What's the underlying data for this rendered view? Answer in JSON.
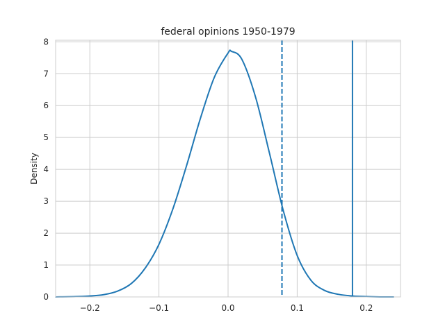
{
  "chart_data": {
    "type": "line",
    "title": "federal opinions 1950-1979",
    "xlabel": "",
    "ylabel": "Density",
    "xlim": [
      -0.2495,
      0.2495
    ],
    "ylim": [
      0,
      8.05
    ],
    "grid": true,
    "xticks": [
      -0.2,
      -0.1,
      0.0,
      0.1,
      0.2
    ],
    "xtick_labels": [
      "−0.2",
      "−0.1",
      "0.0",
      "0.1",
      "0.2"
    ],
    "yticks": [
      0,
      1,
      2,
      3,
      4,
      5,
      6,
      7,
      8
    ],
    "ytick_labels": [
      "0",
      "1",
      "2",
      "3",
      "4",
      "5",
      "6",
      "7",
      "8"
    ],
    "series": [
      {
        "style": "solid",
        "color": "#1f77b4",
        "x": [
          -0.25,
          -0.22,
          -0.2,
          -0.18,
          -0.16,
          -0.14,
          -0.12,
          -0.1,
          -0.08,
          -0.06,
          -0.04,
          -0.02,
          0.0,
          0.005,
          0.02,
          0.04,
          0.06,
          0.08,
          0.1,
          0.12,
          0.14,
          0.16,
          0.18,
          0.2,
          0.22,
          0.24
        ],
        "y": [
          0.0,
          0.01,
          0.03,
          0.07,
          0.18,
          0.42,
          0.9,
          1.65,
          2.75,
          4.12,
          5.6,
          6.88,
          7.65,
          7.7,
          7.45,
          6.25,
          4.5,
          2.7,
          1.3,
          0.52,
          0.2,
          0.08,
          0.03,
          0.01,
          0.0,
          0.0
        ]
      }
    ],
    "vlines": [
      {
        "x": 0.078,
        "style": "dashed",
        "color": "#1f77b4"
      },
      {
        "x": 0.18,
        "style": "solid",
        "color": "#1f77b4"
      }
    ]
  }
}
